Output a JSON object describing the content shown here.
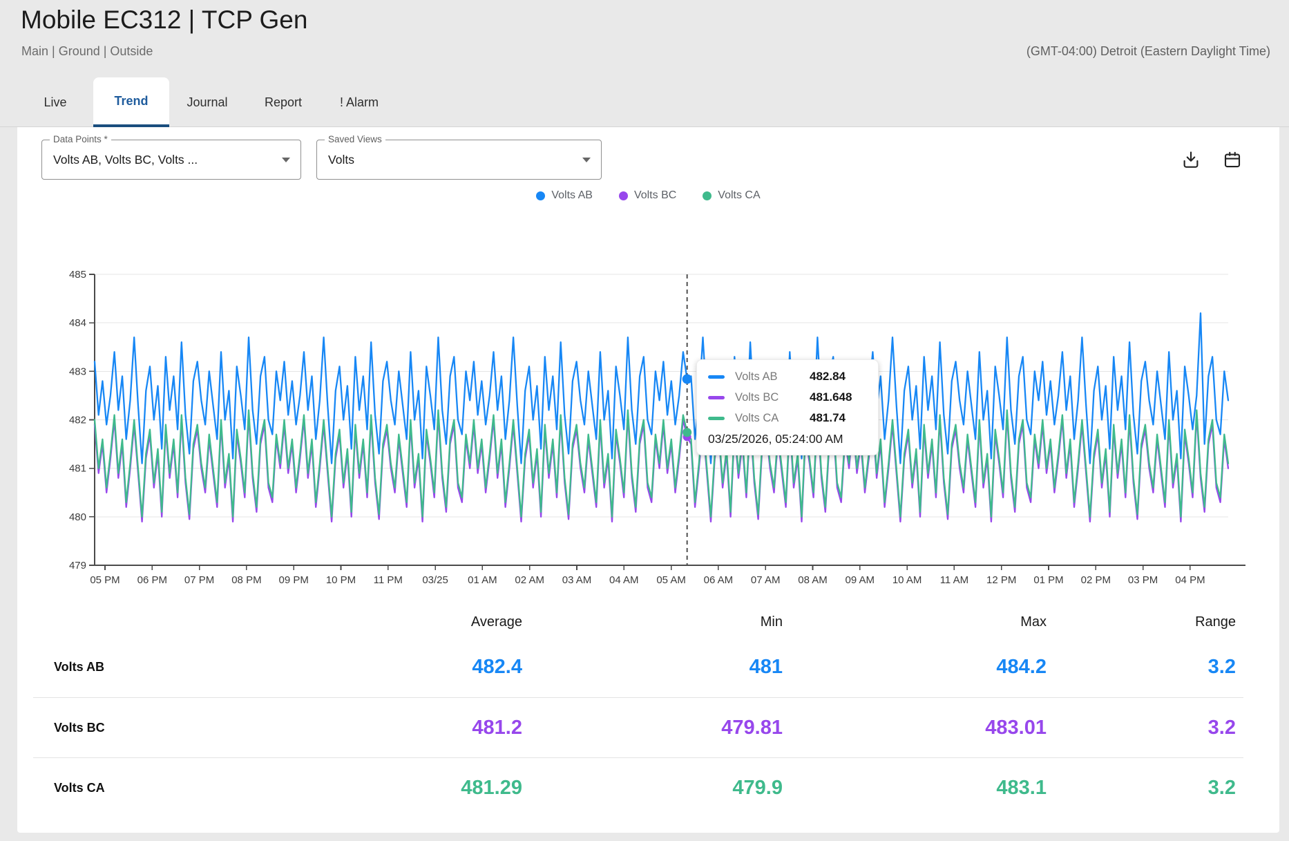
{
  "header": {
    "title": "Mobile EC312 | TCP Gen",
    "breadcrumb": "Main | Ground | Outside",
    "timezone": "(GMT-04:00) Detroit (Eastern Daylight Time)"
  },
  "tabs": [
    {
      "label": "Live",
      "active": false
    },
    {
      "label": "Trend",
      "active": true
    },
    {
      "label": "Journal",
      "active": false
    },
    {
      "label": "Report",
      "active": false
    },
    {
      "label": "! Alarm",
      "active": false
    }
  ],
  "controls": {
    "data_points": {
      "label": "Data Points *",
      "value": "Volts AB, Volts BC, Volts ..."
    },
    "saved_views": {
      "label": "Saved Views",
      "value": "Volts"
    },
    "action_icons": [
      "download-icon",
      "calendar-icon"
    ]
  },
  "legend": [
    {
      "name": "Volts AB",
      "color": "#1787F5"
    },
    {
      "name": "Volts BC",
      "color": "#9747EC"
    },
    {
      "name": "Volts CA",
      "color": "#3FBA8C"
    }
  ],
  "tooltip": {
    "rows": [
      {
        "name": "Volts AB",
        "value": "482.84",
        "color": "#1787F5"
      },
      {
        "name": "Volts BC",
        "value": "481.648",
        "color": "#9747EC"
      },
      {
        "name": "Volts CA",
        "value": "481.74",
        "color": "#3FBA8C"
      }
    ],
    "timestamp": "03/25/2026, 05:24:00 AM"
  },
  "chart_data": {
    "type": "line",
    "title": "",
    "xlabel": "",
    "ylabel": "",
    "ylim": [
      479,
      485
    ],
    "yticks": [
      479,
      480,
      481,
      482,
      483,
      484,
      485
    ],
    "xticks": [
      "05 PM",
      "06 PM",
      "07 PM",
      "08 PM",
      "09 PM",
      "10 PM",
      "11 PM",
      "03/25",
      "01 AM",
      "02 AM",
      "03 AM",
      "04 AM",
      "05 AM",
      "06 AM",
      "07 AM",
      "08 AM",
      "09 AM",
      "10 AM",
      "11 AM",
      "12 PM",
      "01 PM",
      "02 PM",
      "03 PM",
      "04 PM"
    ],
    "grid": true,
    "legend_position": "top-center",
    "points_per_series": 288,
    "draw_order": [
      1,
      2,
      0
    ],
    "cursor": {
      "index": 150,
      "timestamp": "03/25/2026, 05:24:00 AM"
    },
    "series": [
      {
        "name": "Volts AB",
        "color": "#1787F5",
        "stats": {
          "average": 482.4,
          "min": 481,
          "max": 484.2,
          "range": 3.2
        },
        "waveform": [
          483.2,
          482.1,
          482.8,
          481.9,
          482.5,
          483.4,
          482.2,
          482.9,
          481.6,
          482.4,
          483.7,
          482.3,
          481.1,
          482.6,
          483.1,
          482.0,
          482.7,
          481.4,
          483.3,
          482.2,
          482.9,
          481.8,
          483.6,
          482.1,
          481.3,
          482.8,
          483.2,
          482.4,
          481.9,
          483.0,
          482.3,
          481.6,
          483.4,
          482.0,
          482.6,
          481.2,
          483.1,
          482.5,
          481.8,
          483.7,
          482.2,
          481.5,
          482.9,
          483.3,
          482.0,
          481.7,
          483.0,
          482.4
        ],
        "overrides": [
          {
            "i": 150,
            "v": 482.84
          },
          {
            "i": 279,
            "v": 482.5
          },
          {
            "i": 280,
            "v": 484.2
          }
        ]
      },
      {
        "name": "Volts BC",
        "color": "#9747EC",
        "stats": {
          "average": 481.2,
          "min": 479.81,
          "max": 483.01,
          "range": 3.2
        },
        "waveform": [
          481.9,
          480.9,
          481.5,
          480.5,
          481.2,
          482.0,
          480.8,
          481.5,
          480.2,
          481.0,
          481.9,
          480.9,
          479.9,
          481.2,
          481.7,
          480.6,
          481.3,
          480.0,
          481.8,
          480.8,
          481.5,
          480.4,
          482.0,
          480.7,
          479.95,
          481.4,
          481.8,
          481.0,
          480.5,
          481.6,
          480.9,
          480.2,
          481.9,
          480.6,
          481.2,
          479.9,
          481.7,
          481.1,
          480.4,
          482.1,
          480.8,
          480.1,
          481.5,
          481.9,
          480.6,
          480.3,
          481.6,
          481.0
        ],
        "overrides": [
          {
            "i": 150,
            "v": 481.648
          }
        ]
      },
      {
        "name": "Volts CA",
        "color": "#3FBA8C",
        "stats": {
          "average": 481.29,
          "min": 479.9,
          "max": 483.1,
          "range": 3.2
        },
        "waveform": [
          482.0,
          481.0,
          481.6,
          480.6,
          481.3,
          482.1,
          480.9,
          481.6,
          480.3,
          481.1,
          482.0,
          481.0,
          480.0,
          481.3,
          481.8,
          480.7,
          481.4,
          480.1,
          481.9,
          480.9,
          481.6,
          480.5,
          482.1,
          480.8,
          480.05,
          481.5,
          481.9,
          481.1,
          480.6,
          481.7,
          481.0,
          480.3,
          482.0,
          480.7,
          481.3,
          480.0,
          481.8,
          481.2,
          480.5,
          482.2,
          480.9,
          480.2,
          481.6,
          482.0,
          480.7,
          480.4,
          481.7,
          481.1
        ],
        "overrides": [
          {
            "i": 150,
            "v": 481.74
          }
        ]
      }
    ]
  },
  "summary_table": {
    "columns": [
      "Average",
      "Min",
      "Max",
      "Range"
    ],
    "rows": [
      {
        "name": "Volts AB",
        "color": "#1787F5",
        "average": "482.4",
        "min": "481",
        "max": "484.2",
        "range": "3.2"
      },
      {
        "name": "Volts BC",
        "color": "#9747EC",
        "average": "481.2",
        "min": "479.81",
        "max": "483.01",
        "range": "3.2"
      },
      {
        "name": "Volts CA",
        "color": "#3FBA8C",
        "average": "481.29",
        "min": "479.9",
        "max": "483.1",
        "range": "3.2"
      }
    ]
  }
}
